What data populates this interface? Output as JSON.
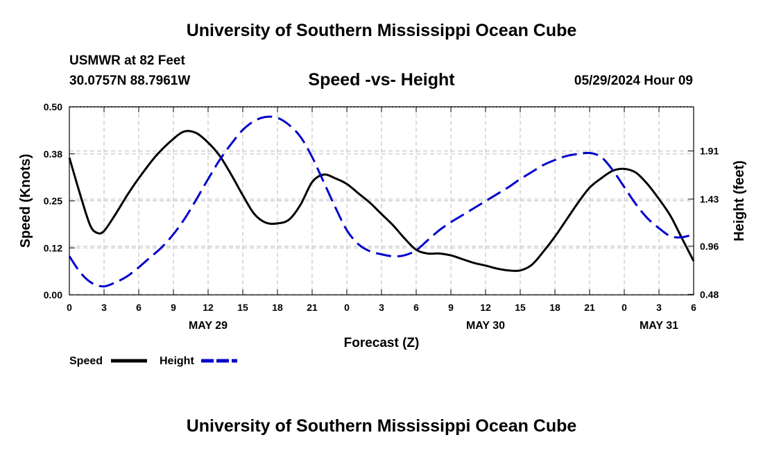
{
  "header": {
    "title": "University of Southern Mississippi Ocean Cube",
    "station": "USMWR at 82 Feet",
    "coordinates": "30.0757N  88.7961W",
    "subtitle": "Speed -vs- Height",
    "datestamp": "05/29/2024 Hour 09"
  },
  "footer": {
    "title": "University of Southern Mississippi Ocean Cube"
  },
  "chart_data": {
    "type": "line",
    "xlabel": "Forecast (Z)",
    "ylabel_left": "Speed (Knots)",
    "ylabel_right": "Height (feet)",
    "x_range_hours": [
      0,
      54
    ],
    "x_tick_hours": [
      0,
      3,
      6,
      9,
      12,
      15,
      18,
      21,
      24,
      27,
      30,
      33,
      36,
      39,
      42,
      45,
      48,
      51,
      54
    ],
    "x_tick_labels": [
      "0",
      "3",
      "6",
      "9",
      "12",
      "15",
      "18",
      "21",
      "0",
      "3",
      "6",
      "9",
      "12",
      "15",
      "18",
      "21",
      "0",
      "3",
      "6"
    ],
    "day_labels": [
      {
        "hour": 12,
        "label": "MAY 29"
      },
      {
        "hour": 36,
        "label": "MAY 30"
      },
      {
        "hour": 51,
        "label": "MAY 31"
      }
    ],
    "y_left": {
      "ylim": [
        0,
        0.5
      ],
      "ticks": [
        0.0,
        0.125,
        0.25,
        0.375,
        0.5
      ],
      "tick_labels": [
        "0.00",
        "0.12",
        "0.25",
        "0.38",
        "0.50"
      ]
    },
    "y_right": {
      "ylim": [
        0.475,
        2.35
      ],
      "ticks": [
        0.48,
        0.96,
        1.43,
        1.91
      ],
      "tick_labels": [
        "0.48",
        "0.96",
        "1.43",
        "1.91"
      ]
    },
    "grid": true,
    "legend": "bottom-left",
    "series": [
      {
        "name": "Speed",
        "axis": "left",
        "color": "#000000",
        "style": "solid",
        "x": [
          0,
          1,
          1.8,
          2.4,
          3,
          4,
          5,
          6,
          7.5,
          9,
          10,
          11,
          12,
          13,
          14,
          15,
          16,
          17,
          18,
          19,
          20,
          21,
          22,
          23,
          24,
          25,
          26,
          27,
          28,
          29,
          30,
          31,
          32,
          33,
          34,
          35,
          36,
          37,
          38,
          39,
          40,
          41,
          42,
          43,
          44,
          45,
          46,
          47,
          48,
          49,
          50,
          51,
          52,
          53,
          54
        ],
        "y": [
          0.365,
          0.26,
          0.185,
          0.165,
          0.17,
          0.215,
          0.265,
          0.31,
          0.37,
          0.415,
          0.435,
          0.43,
          0.405,
          0.37,
          0.32,
          0.265,
          0.215,
          0.192,
          0.19,
          0.2,
          0.24,
          0.3,
          0.32,
          0.31,
          0.295,
          0.27,
          0.245,
          0.215,
          0.185,
          0.15,
          0.12,
          0.11,
          0.11,
          0.105,
          0.095,
          0.085,
          0.078,
          0.07,
          0.065,
          0.065,
          0.08,
          0.115,
          0.155,
          0.2,
          0.245,
          0.285,
          0.31,
          0.33,
          0.335,
          0.325,
          0.295,
          0.255,
          0.21,
          0.15,
          0.09
        ]
      },
      {
        "name": "Height",
        "axis": "right",
        "color": "#0000cc",
        "style": "dashed",
        "x": [
          0,
          1,
          2,
          3,
          4,
          5,
          6,
          7,
          8,
          9,
          10,
          11,
          12,
          13,
          14,
          15,
          16,
          17,
          18,
          19,
          20,
          21,
          22,
          23,
          24,
          25,
          26,
          27,
          28,
          29,
          30,
          31,
          32,
          33,
          34,
          35,
          36,
          37,
          38,
          39,
          40,
          41,
          42,
          43,
          44,
          45,
          46,
          47,
          48,
          49,
          50,
          51,
          52,
          53,
          54
        ],
        "y": [
          0.86,
          0.69,
          0.59,
          0.56,
          0.6,
          0.66,
          0.75,
          0.85,
          0.95,
          1.08,
          1.24,
          1.43,
          1.63,
          1.82,
          1.98,
          2.12,
          2.21,
          2.25,
          2.24,
          2.17,
          2.05,
          1.85,
          1.6,
          1.35,
          1.12,
          0.98,
          0.91,
          0.88,
          0.86,
          0.87,
          0.92,
          1.02,
          1.12,
          1.2,
          1.27,
          1.34,
          1.41,
          1.48,
          1.55,
          1.63,
          1.7,
          1.77,
          1.82,
          1.86,
          1.88,
          1.89,
          1.85,
          1.72,
          1.55,
          1.38,
          1.24,
          1.14,
          1.06,
          1.05,
          1.08
        ]
      }
    ]
  }
}
